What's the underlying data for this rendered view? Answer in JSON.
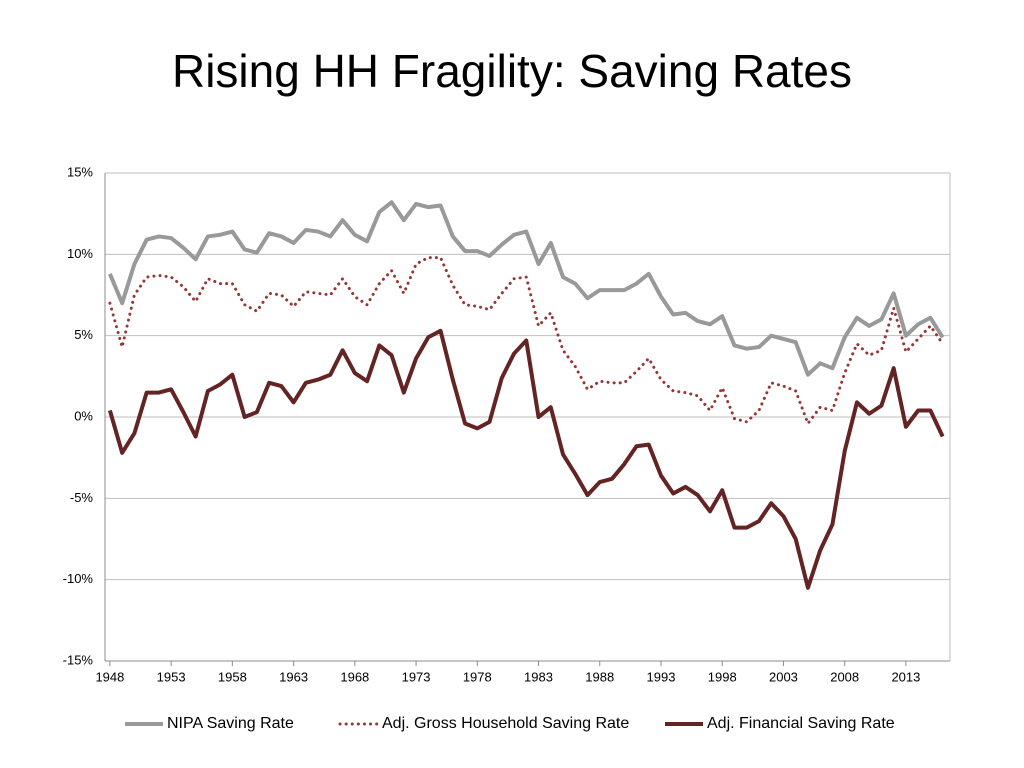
{
  "chart_data": {
    "type": "line",
    "title": "Rising HH Fragility: Saving Rates",
    "x": [
      1948,
      1949,
      1950,
      1951,
      1952,
      1953,
      1954,
      1955,
      1956,
      1957,
      1958,
      1959,
      1960,
      1961,
      1962,
      1963,
      1964,
      1965,
      1966,
      1967,
      1968,
      1969,
      1970,
      1971,
      1972,
      1973,
      1974,
      1975,
      1976,
      1977,
      1978,
      1979,
      1980,
      1981,
      1982,
      1983,
      1984,
      1985,
      1986,
      1987,
      1988,
      1989,
      1990,
      1991,
      1992,
      1993,
      1994,
      1995,
      1996,
      1997,
      1998,
      1999,
      2000,
      2001,
      2002,
      2003,
      2004,
      2005,
      2006,
      2007,
      2008,
      2009,
      2010,
      2011,
      2012,
      2013,
      2014,
      2015,
      2016
    ],
    "series": [
      {
        "name": "NIPA Saving Rate",
        "color": "#999999",
        "style": "solid",
        "values": [
          8.8,
          7.0,
          9.4,
          10.9,
          11.1,
          11.0,
          10.4,
          9.7,
          11.1,
          11.2,
          11.4,
          10.3,
          10.1,
          11.3,
          11.1,
          10.7,
          11.5,
          11.4,
          11.1,
          12.1,
          11.2,
          10.8,
          12.6,
          13.2,
          12.1,
          13.1,
          12.9,
          13.0,
          11.1,
          10.2,
          10.2,
          9.9,
          10.6,
          11.2,
          11.4,
          9.4,
          10.7,
          8.6,
          8.2,
          7.3,
          7.8,
          7.8,
          7.8,
          8.2,
          8.8,
          7.4,
          6.3,
          6.4,
          5.9,
          5.7,
          6.2,
          4.4,
          4.2,
          4.3,
          5.0,
          4.8,
          4.6,
          2.6,
          3.3,
          3.0,
          4.9,
          6.1,
          5.6,
          6.0,
          7.6,
          5.0,
          5.7,
          6.1,
          4.9
        ]
      },
      {
        "name": "Adj. Gross Household Saving Rate",
        "color": "#953735",
        "style": "dotted",
        "values": [
          7.0,
          4.3,
          7.5,
          8.6,
          8.7,
          8.6,
          8.0,
          7.1,
          8.5,
          8.2,
          8.2,
          6.9,
          6.5,
          7.6,
          7.5,
          6.8,
          7.7,
          7.6,
          7.5,
          8.5,
          7.4,
          6.9,
          8.2,
          9.0,
          7.6,
          9.4,
          9.8,
          9.8,
          8.1,
          6.9,
          6.8,
          6.6,
          7.6,
          8.5,
          8.6,
          5.6,
          6.4,
          4.1,
          3.1,
          1.7,
          2.2,
          2.1,
          2.1,
          2.8,
          3.6,
          2.3,
          1.6,
          1.5,
          1.3,
          0.4,
          1.8,
          -0.1,
          -0.3,
          0.4,
          2.1,
          1.9,
          1.6,
          -0.4,
          0.6,
          0.4,
          2.7,
          4.5,
          3.8,
          4.1,
          6.7,
          4.0,
          4.8,
          5.6,
          4.5
        ]
      },
      {
        "name": "Adj. Financial Saving Rate",
        "color": "#632423",
        "style": "solid",
        "values": [
          0.4,
          -2.2,
          -1.0,
          1.5,
          1.5,
          1.7,
          0.3,
          -1.2,
          1.6,
          2.0,
          2.6,
          0.0,
          0.3,
          2.1,
          1.9,
          0.9,
          2.1,
          2.3,
          2.6,
          4.1,
          2.7,
          2.2,
          4.4,
          3.8,
          1.5,
          3.6,
          4.9,
          5.3,
          2.3,
          -0.4,
          -0.7,
          -0.3,
          2.4,
          3.9,
          4.7,
          0.0,
          0.6,
          -2.3,
          -3.5,
          -4.8,
          -4.0,
          -3.8,
          -2.9,
          -1.8,
          -1.7,
          -3.6,
          -4.7,
          -4.3,
          -4.8,
          -5.8,
          -4.5,
          -6.8,
          -6.8,
          -6.4,
          -5.3,
          -6.1,
          -7.5,
          -10.5,
          -8.2,
          -6.6,
          -2.1,
          0.9,
          0.2,
          0.7,
          3.0,
          -0.6,
          0.4,
          0.4,
          -1.2
        ]
      }
    ],
    "xlim": [
      1947.6,
      2016.6
    ],
    "xticks": [
      1948,
      1953,
      1958,
      1963,
      1968,
      1973,
      1978,
      1983,
      1988,
      1993,
      1998,
      2003,
      2008,
      2013
    ],
    "ylim": [
      -15,
      15
    ],
    "yticks": [
      {
        "value": -15,
        "label": "-15%"
      },
      {
        "value": -10,
        "label": "-10%"
      },
      {
        "value": -5,
        "label": "-5%"
      },
      {
        "value": 0,
        "label": "0%"
      },
      {
        "value": 5,
        "label": "5%"
      },
      {
        "value": 10,
        "label": "10%"
      },
      {
        "value": 15,
        "label": "15%"
      }
    ],
    "grid": true,
    "legend": "bottom"
  }
}
